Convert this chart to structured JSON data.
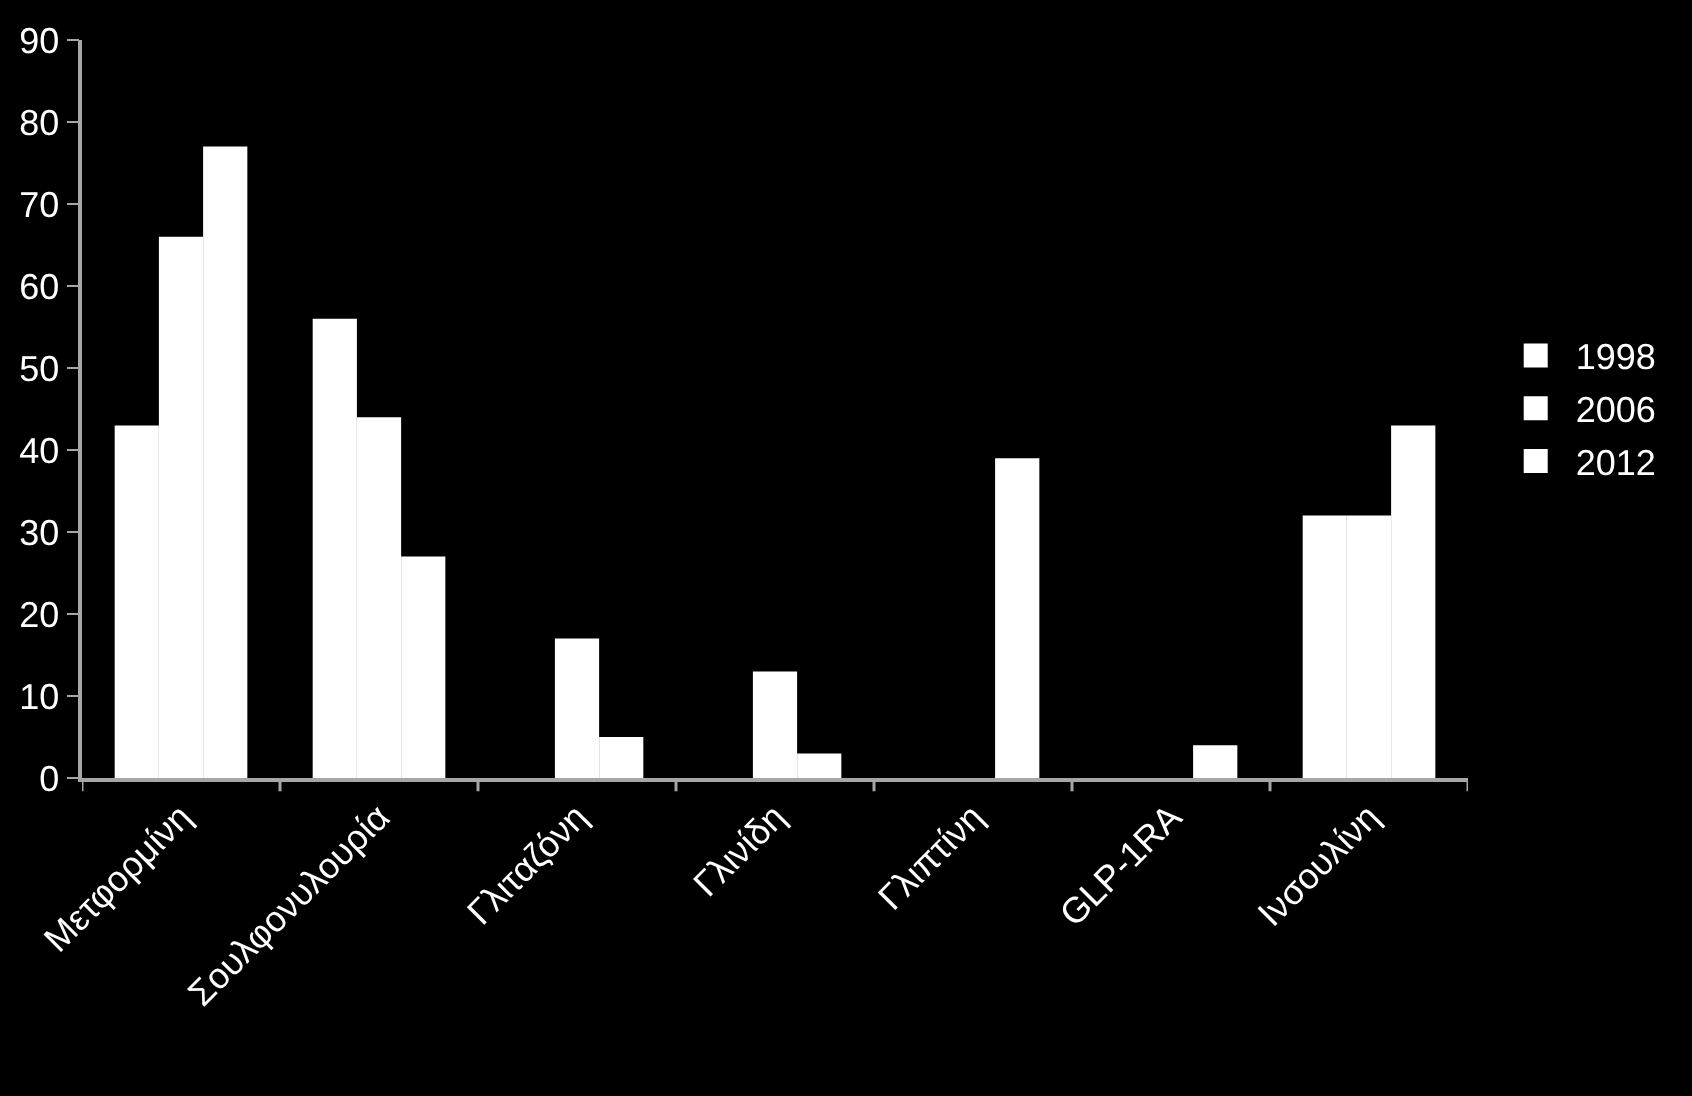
{
  "chart_data": {
    "type": "bar",
    "categories": [
      "Μετφορμίνη",
      "Σουλφονυλουρία",
      "Γλιταζόνη",
      "Γλινίδη",
      "Γλιπτίνη",
      "GLP-1RA",
      "Ινσουλίνη"
    ],
    "series": [
      {
        "name": "1998",
        "color": "#ffffff",
        "values": [
          43,
          56,
          0,
          0,
          0,
          0,
          32
        ]
      },
      {
        "name": "2006",
        "color": "#ffffff",
        "values": [
          66,
          44,
          17,
          13,
          0,
          0,
          32
        ]
      },
      {
        "name": "2012",
        "color": "#ffffff",
        "values": [
          77,
          27,
          5,
          3,
          39,
          4,
          43
        ]
      }
    ],
    "ylim": [
      0,
      90
    ],
    "yticks": [
      0,
      10,
      20,
      30,
      40,
      50,
      60,
      70,
      80,
      90
    ],
    "grid": false,
    "legend": "right"
  }
}
